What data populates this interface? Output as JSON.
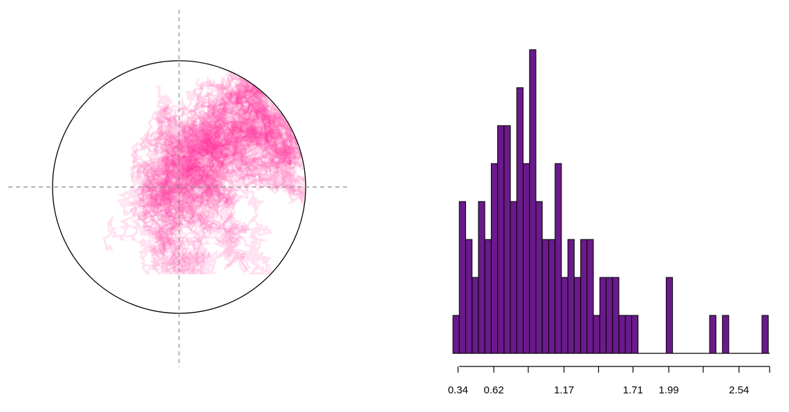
{
  "chart_data": [
    {
      "type": "scatter",
      "description_visible": "random walk paths inside a unit circle",
      "circle": {
        "center": [
          0,
          0
        ],
        "radius": 1
      },
      "reference_lines": {
        "x": 0,
        "y": 0,
        "style": "dashed"
      },
      "point_color": "#ff1f8f",
      "outline_color": "#000000",
      "guide_color": "#888888"
    },
    {
      "type": "bar",
      "subtype": "histogram",
      "bar_color": "#6a1a8a",
      "edge_color": "#000000",
      "x_range": [
        0.3,
        2.78
      ],
      "bin_width": 0.05,
      "bin_start": 0.3,
      "counts": [
        1,
        4,
        3,
        2,
        4,
        3,
        5,
        6,
        6,
        4,
        7,
        5,
        8,
        4,
        3,
        3,
        5,
        2,
        3,
        2,
        3,
        3,
        1,
        2,
        2,
        2,
        1,
        1,
        1,
        0,
        0,
        0,
        0,
        0,
        0,
        0,
        0,
        0,
        0,
        0,
        0,
        0,
        0,
        0,
        0,
        0,
        0,
        0,
        0,
        0
      ],
      "extra_bars": [
        {
          "x": 1.97,
          "count": 2
        },
        {
          "x": 2.31,
          "count": 1
        },
        {
          "x": 2.41,
          "count": 1
        },
        {
          "x": 2.72,
          "count": 1
        }
      ],
      "ticks": [
        0.34,
        0.62,
        1.17,
        1.71,
        1.99,
        2.54
      ],
      "minor_ticks": [
        0.89,
        1.44,
        2.26,
        2.78
      ],
      "tick_labels": [
        "0.34",
        "0.62",
        "1.17",
        "1.71",
        "1.99",
        "2.54"
      ]
    }
  ]
}
